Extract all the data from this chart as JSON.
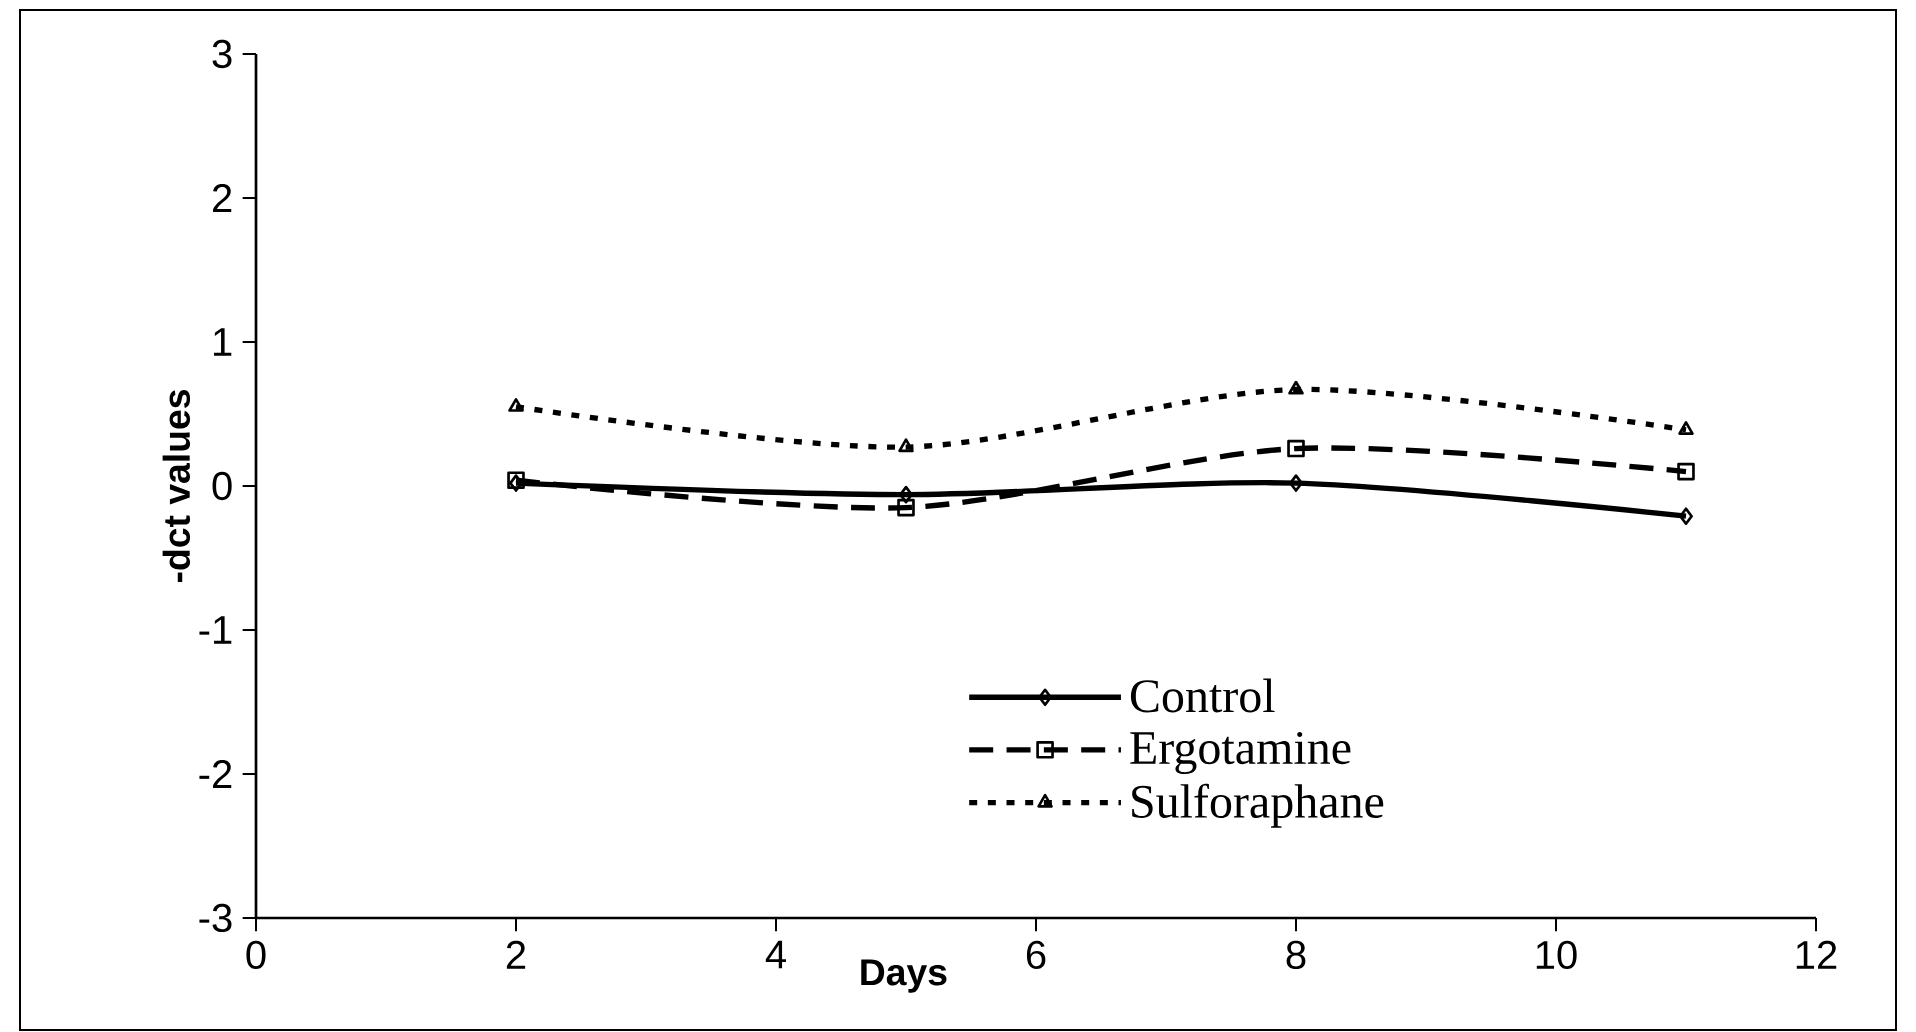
{
  "chart_data": {
    "type": "line",
    "xlabel": "Days",
    "ylabel": "-dct values",
    "x": [
      2,
      5,
      8,
      11
    ],
    "xlim": [
      0,
      12
    ],
    "xticks": [
      0,
      2,
      4,
      6,
      8,
      10,
      12
    ],
    "ylim": [
      -3,
      3
    ],
    "yticks": [
      -3,
      -2,
      -1,
      0,
      1,
      2,
      3
    ],
    "legend": "bottom right",
    "series": [
      {
        "name": "Control",
        "color": "#000000",
        "marker": "diamond",
        "line_style": "solid",
        "values": [
          0.02,
          -0.06,
          0.02,
          -0.21
        ]
      },
      {
        "name": "Ergotamine",
        "color": "#000000",
        "marker": "square",
        "line_style": "dashed",
        "values": [
          0.04,
          -0.15,
          0.26,
          0.1
        ]
      },
      {
        "name": "Sulforaphane",
        "color": "#000000",
        "marker": "triangle",
        "line_style": "dotted",
        "values": [
          0.55,
          0.27,
          0.67,
          0.39
        ]
      }
    ]
  }
}
